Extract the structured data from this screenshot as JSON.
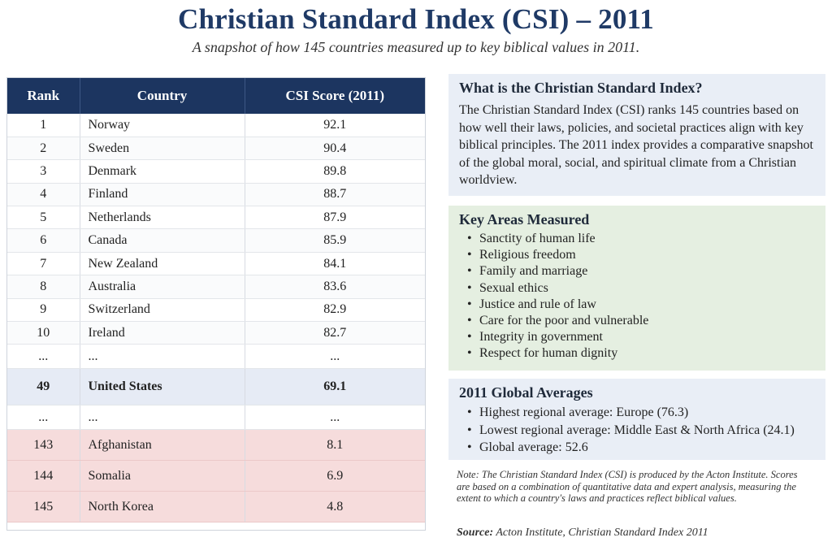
{
  "title": "Christian Standard Index (CSI) – 2011",
  "subtitle": "A snapshot of how 145 countries measured up to key biblical values in 2011.",
  "table": {
    "headers": {
      "rank": "Rank",
      "country": "Country",
      "score": "CSI Score (2011)"
    },
    "top_rows": [
      {
        "rank": "1",
        "country": "Norway",
        "score": "92.1"
      },
      {
        "rank": "2",
        "country": "Sweden",
        "score": "90.4"
      },
      {
        "rank": "3",
        "country": "Denmark",
        "score": "89.8"
      },
      {
        "rank": "4",
        "country": "Finland",
        "score": "88.7"
      },
      {
        "rank": "5",
        "country": "Netherlands",
        "score": "87.9"
      },
      {
        "rank": "6",
        "country": "Canada",
        "score": "85.9"
      },
      {
        "rank": "7",
        "country": "New Zealand",
        "score": "84.1"
      },
      {
        "rank": "8",
        "country": "Australia",
        "score": "83.6"
      },
      {
        "rank": "9",
        "country": "Switzerland",
        "score": "82.9"
      },
      {
        "rank": "10",
        "country": "Ireland",
        "score": "82.7"
      }
    ],
    "ellipsis": "...",
    "highlight_row": {
      "rank": "49",
      "country": "United States",
      "score": "69.1"
    },
    "bottom_rows": [
      {
        "rank": "143",
        "country": "Afghanistan",
        "score": "8.1"
      },
      {
        "rank": "144",
        "country": "Somalia",
        "score": "6.9"
      },
      {
        "rank": "145",
        "country": "North Korea",
        "score": "4.8"
      }
    ]
  },
  "what_box": {
    "heading": "What is the Christian Standard Index?",
    "body": "The Christian Standard Index (CSI) ranks 145 countries based on how well their laws, policies, and societal practices align with key biblical principles. The 2011 index provides a comparative snapshot of the global moral, social, and spiritual climate from a Christian worldview."
  },
  "key_areas": {
    "heading": "Key Areas Measured",
    "items": [
      "Sanctity of human life",
      "Religious freedom",
      "Family and marriage",
      "Sexual ethics",
      "Justice and rule of law",
      "Care for the poor and vulnerable",
      "Integrity in government",
      "Respect for human dignity"
    ]
  },
  "averages": {
    "heading": "2011 Global Averages",
    "items": [
      "Highest regional average: Europe (76.3)",
      "Lowest regional average: Middle East & North Africa (24.1)",
      "Global average: 52.6"
    ]
  },
  "note": "Note: The Christian Standard Index (CSI) is produced by the Acton Institute. Scores are based on a combination of quantitative data and expert analysis, measuring the extent to which a country's laws and practices reflect biblical values.",
  "source": {
    "label": "Source:",
    "text": "Acton Institute, Christian Standard Index 2011"
  },
  "colors": {
    "header_navy": "#1c3560",
    "title_navy": "#1f3a66",
    "highlight_blue": "#e6ebf5",
    "bottom_red": "#f6dcdc",
    "key_green": "#e5efe1",
    "info_blue": "#e9eef6"
  }
}
